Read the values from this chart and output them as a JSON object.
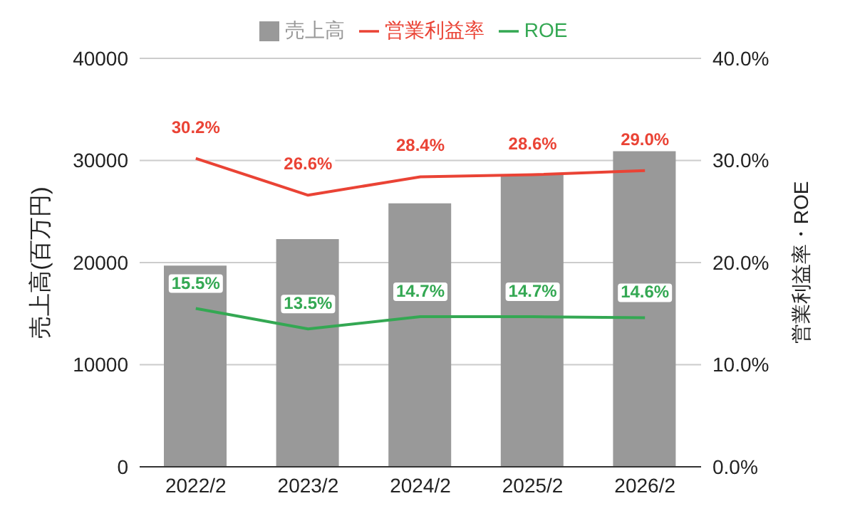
{
  "chart_data": {
    "type": "bar",
    "categories": [
      "2022/2",
      "2023/2",
      "2024/2",
      "2025/2",
      "2026/2"
    ],
    "series": [
      {
        "name": "売上高",
        "type": "bar",
        "color": "#999999",
        "values": [
          19700,
          22300,
          25800,
          28600,
          30900
        ]
      },
      {
        "name": "営業利益率",
        "type": "line",
        "axis": "y2",
        "color": "#ea4335",
        "values": [
          30.2,
          26.6,
          28.4,
          28.6,
          29.0
        ],
        "value_labels": [
          "30.2%",
          "26.6%",
          "28.4%",
          "28.6%",
          "29.0%"
        ]
      },
      {
        "name": "ROE",
        "type": "line",
        "axis": "y2",
        "color": "#34a853",
        "values": [
          15.5,
          13.5,
          14.7,
          14.7,
          14.6
        ],
        "value_labels": [
          "15.5%",
          "13.5%",
          "14.7%",
          "14.7%",
          "14.6%"
        ]
      }
    ],
    "ylabel": "売上高(百万円)",
    "y2label": "営業利益率・ROE",
    "ylim": [
      0,
      40000
    ],
    "yticks": [
      0,
      10000,
      20000,
      30000,
      40000
    ],
    "y2lim": [
      0,
      40
    ],
    "y2ticks": [
      {
        "value": 0,
        "label": "0.0%"
      },
      {
        "value": 10,
        "label": "10.0%"
      },
      {
        "value": 20,
        "label": "20.0%"
      },
      {
        "value": 30,
        "label": "30.0%"
      },
      {
        "value": 40,
        "label": "40.0%"
      }
    ],
    "grid": "y",
    "legend": "top",
    "marker": "none",
    "line_style": "solid"
  }
}
